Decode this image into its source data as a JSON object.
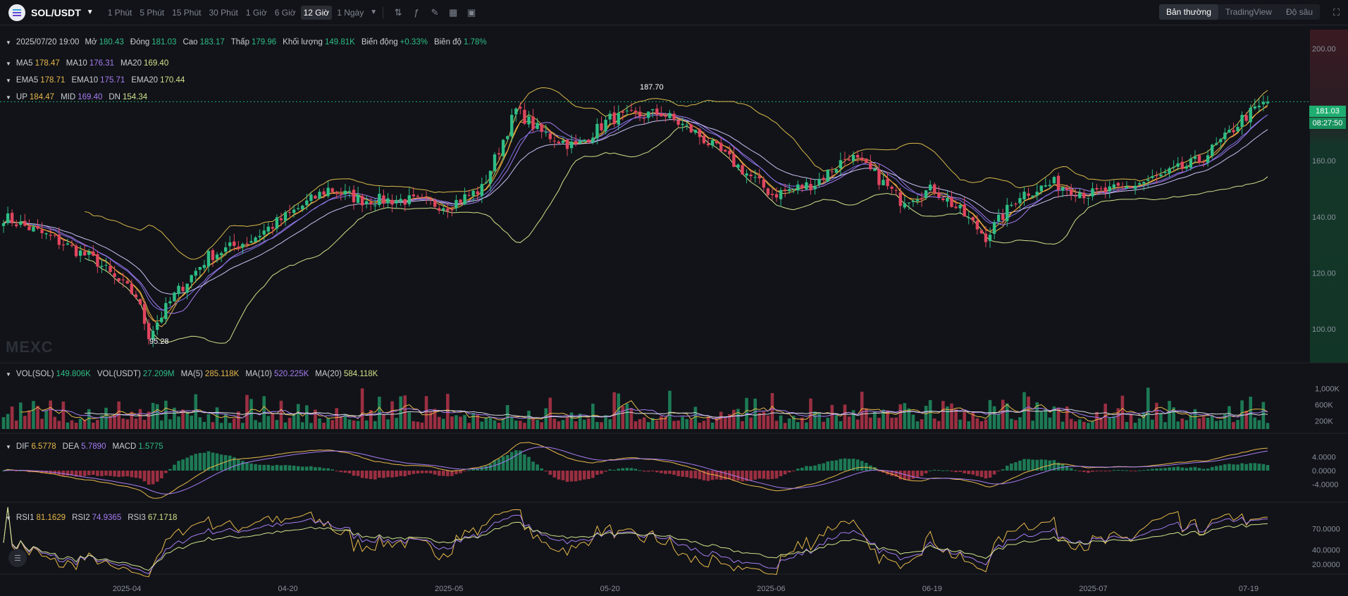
{
  "toolbar": {
    "pair": "SOL/USDT",
    "intervals": [
      "1 Phút",
      "5 Phút",
      "15 Phút",
      "30 Phút",
      "1 Giờ",
      "6 Giờ",
      "12 Giờ",
      "1 Ngày"
    ],
    "active_interval": "12 Giờ",
    "tool_icons": [
      "indicator-icon",
      "formula-icon",
      "draw-icon",
      "layout-icon",
      "camera-icon"
    ],
    "views": [
      "Bản thường",
      "TradingView",
      "Độ sâu"
    ],
    "active_view": "Bản thường"
  },
  "ohlc": {
    "date": "2025/07/20 19:00",
    "open_label": "Mở",
    "open": "180.43",
    "close_label": "Đóng",
    "close": "181.03",
    "high_label": "Cao",
    "high": "183.17",
    "low_label": "Thấp",
    "low": "179.96",
    "volume_label": "Khối lượng",
    "volume": "149.81K",
    "change_label": "Biến động",
    "change": "+0.33%",
    "amplitude_label": "Biên độ",
    "amplitude": "1.78%"
  },
  "ma": {
    "ma5_label": "MA5",
    "ma5": "178.47",
    "ma10_label": "MA10",
    "ma10": "176.31",
    "ma20_label": "MA20",
    "ma20": "169.40"
  },
  "ema": {
    "ema5_label": "EMA5",
    "ema5": "178.71",
    "ema10_label": "EMA10",
    "ema10": "175.71",
    "ema20_label": "EMA20",
    "ema20": "170.44"
  },
  "boll": {
    "up_label": "UP",
    "up": "184.47",
    "mid_label": "MID",
    "mid": "169.40",
    "dn_label": "DN",
    "dn": "154.34"
  },
  "vol": {
    "vol_label": "VOL(SOL)",
    "vol": "149.806K",
    "volusdt_label": "VOL(USDT)",
    "volusdt": "27.209M",
    "ma5_label": "MA(5)",
    "ma5": "285.118K",
    "ma10_label": "MA(10)",
    "ma10": "520.225K",
    "ma20_label": "MA(20)",
    "ma20": "584.118K"
  },
  "macd": {
    "dif_label": "DIF",
    "dif": "6.5778",
    "dea_label": "DEA",
    "dea": "5.7890",
    "macd_label": "MACD",
    "macd": "1.5775"
  },
  "rsi": {
    "rsi1_label": "RSI1",
    "rsi1": "81.1629",
    "rsi2_label": "RSI2",
    "rsi2": "74.9365",
    "rsi3_label": "RSI3",
    "rsi3": "67.1718"
  },
  "last_price": "181.03",
  "countdown": "08:27:50",
  "annotations": {
    "high": "187.70",
    "low": "95.28"
  },
  "watermark": "MEXC",
  "colors": {
    "up": "#2ebd85",
    "down": "#e0455e",
    "ma5": "#e8b84a",
    "ma10": "#a77cf2",
    "ma20": "#cfe28a",
    "boll": "#d9b84a",
    "background": "#111318"
  },
  "chart_data": {
    "type": "candlestick",
    "x_ticks": [
      "2025-04",
      "04-20",
      "2025-05",
      "05-20",
      "2025-06",
      "06-19",
      "2025-07",
      "07-19"
    ],
    "price_axis": {
      "ticks": [
        100,
        120,
        140,
        160,
        180,
        200
      ],
      "labels": [
        "100.00",
        "120.00",
        "140.00",
        "160.00",
        "200.00"
      ],
      "range": [
        88,
        208
      ]
    },
    "volume_axis": {
      "ticks": [
        "200K",
        "600K",
        "1,000K"
      ],
      "values": [
        200000,
        600000,
        1000000
      ],
      "range": [
        0,
        1250000
      ]
    },
    "macd_axis": {
      "ticks": [
        "-4.0000",
        "0.0000",
        "4.0000"
      ],
      "values": [
        -4,
        0,
        4
      ],
      "range": [
        -8,
        8
      ]
    },
    "rsi_axis": {
      "ticks": [
        "20.0000",
        "40.0000",
        "70.0000"
      ],
      "values": [
        20,
        40,
        70
      ],
      "range": [
        10,
        90
      ]
    },
    "anchors": [
      [
        0,
        140
      ],
      [
        12,
        132
      ],
      [
        22,
        124
      ],
      [
        26,
        118
      ],
      [
        31,
        112
      ],
      [
        34,
        98
      ],
      [
        40,
        112
      ],
      [
        48,
        126
      ],
      [
        58,
        132
      ],
      [
        66,
        140
      ],
      [
        76,
        150
      ],
      [
        84,
        146
      ],
      [
        94,
        146
      ],
      [
        104,
        144
      ],
      [
        112,
        150
      ],
      [
        120,
        178
      ],
      [
        126,
        170
      ],
      [
        134,
        165
      ],
      [
        142,
        175
      ],
      [
        154,
        177
      ],
      [
        162,
        170
      ],
      [
        172,
        158
      ],
      [
        180,
        148
      ],
      [
        190,
        152
      ],
      [
        198,
        162
      ],
      [
        204,
        155
      ],
      [
        210,
        146
      ],
      [
        218,
        150
      ],
      [
        224,
        142
      ],
      [
        230,
        133
      ],
      [
        238,
        148
      ],
      [
        246,
        152
      ],
      [
        254,
        148
      ],
      [
        262,
        150
      ],
      [
        272,
        155
      ],
      [
        280,
        160
      ],
      [
        286,
        168
      ],
      [
        290,
        175
      ],
      [
        296,
        181
      ]
    ]
  }
}
